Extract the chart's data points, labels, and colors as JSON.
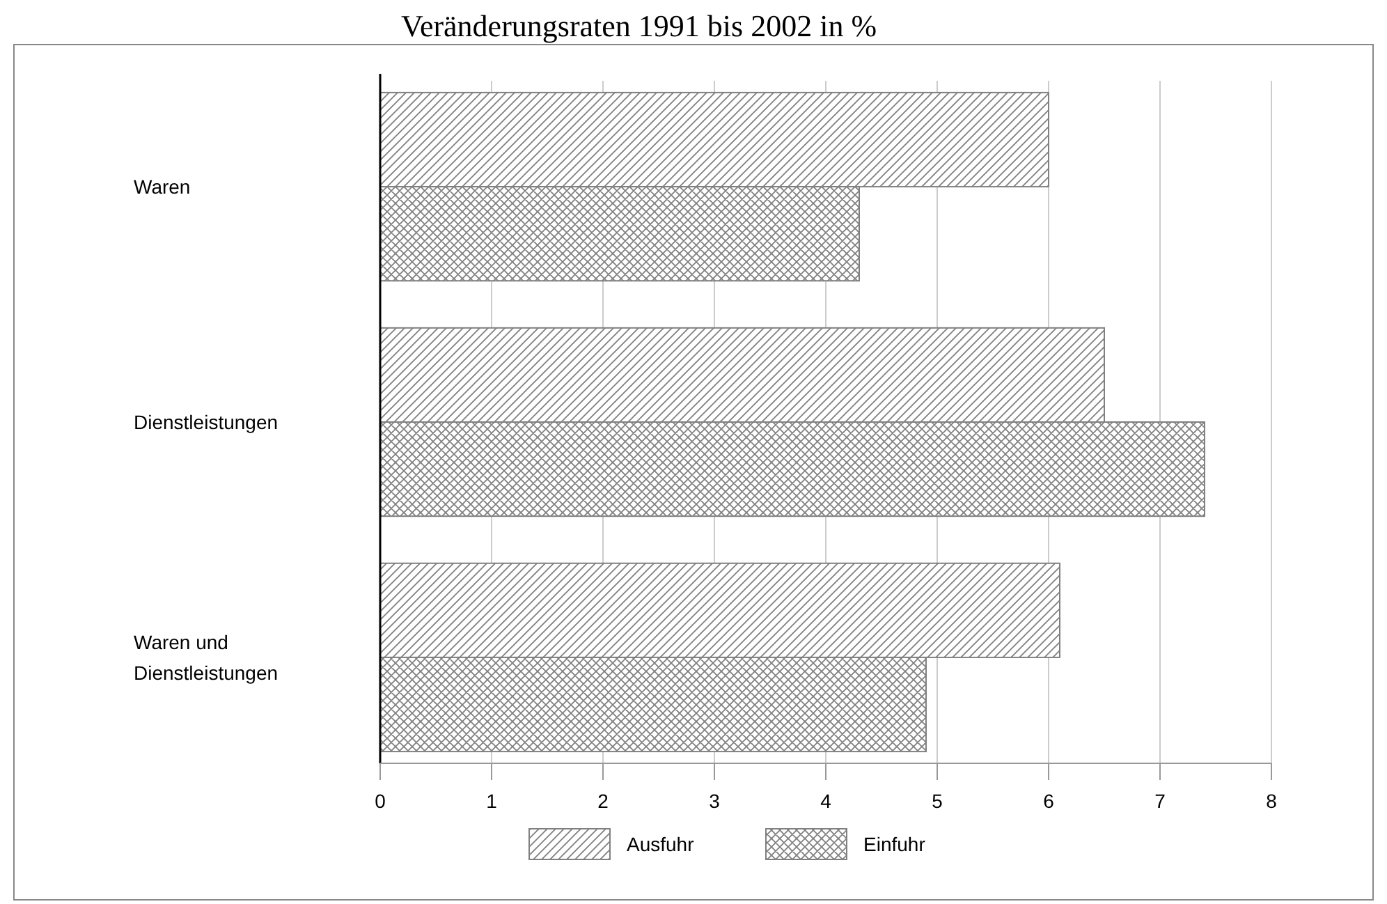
{
  "chart_data": {
    "type": "bar",
    "orientation": "horizontal",
    "title": "Veränderungsraten 1991 bis 2002 in %",
    "categories": [
      "Waren",
      "Dienstleistungen",
      "Waren und Dienstleistungen"
    ],
    "series": [
      {
        "name": "Ausfuhr",
        "color": "#808080",
        "values": [
          6.0,
          6.5,
          6.1
        ]
      },
      {
        "name": "Einfuhr",
        "color": "#808080",
        "values": [
          4.3,
          7.4,
          4.9
        ]
      }
    ],
    "xlim": [
      0,
      8
    ],
    "xticks": [
      0,
      1,
      2,
      3,
      4,
      5,
      6,
      7,
      8
    ],
    "grid": "x",
    "legend": "bottom"
  }
}
